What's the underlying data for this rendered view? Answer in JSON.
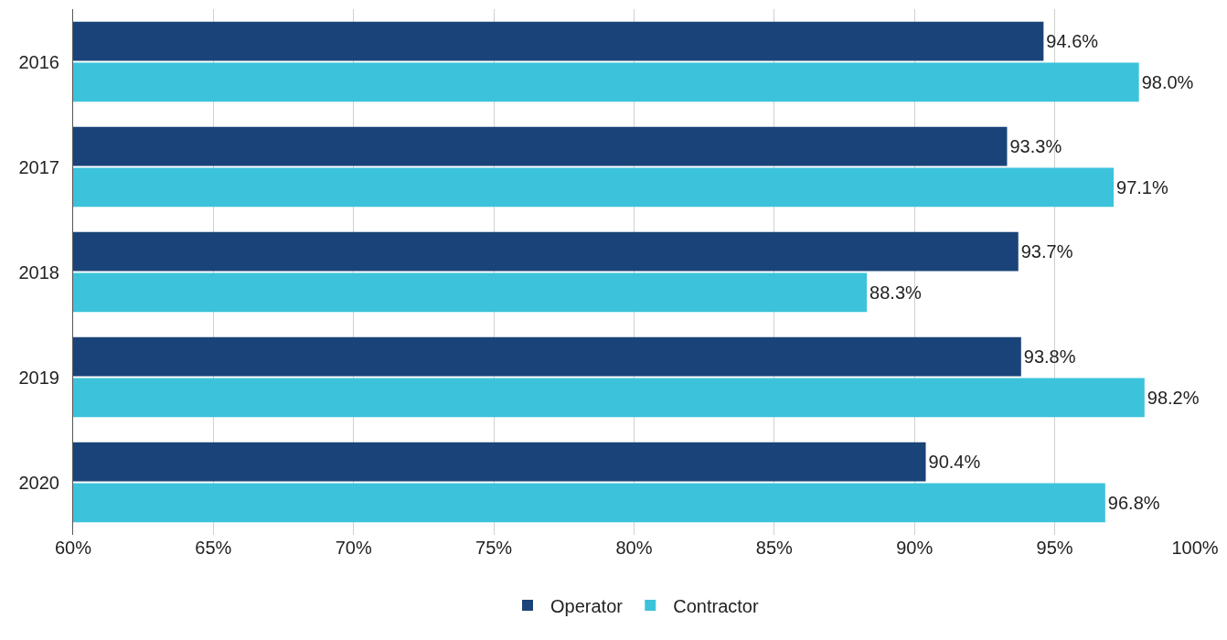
{
  "chart_data": {
    "type": "bar",
    "orientation": "horizontal",
    "categories": [
      "2016",
      "2017",
      "2018",
      "2019",
      "2020"
    ],
    "series": [
      {
        "name": "Operator",
        "color": "#1a4479",
        "values": [
          94.6,
          93.3,
          93.7,
          93.8,
          90.4
        ],
        "value_labels": [
          "94.6%",
          "93.3%",
          "93.7%",
          "93.8%",
          "90.4%"
        ]
      },
      {
        "name": "Contractor",
        "color": "#3cc3db",
        "values": [
          98.0,
          97.1,
          88.3,
          98.2,
          96.8
        ],
        "value_labels": [
          "98.0%",
          "97.1%",
          "88.3%",
          "98.2%",
          "96.8%"
        ]
      }
    ],
    "xlim": [
      60,
      100
    ],
    "xticks": [
      {
        "value": 60,
        "label": "60%"
      },
      {
        "value": 65,
        "label": "65%"
      },
      {
        "value": 70,
        "label": "70%"
      },
      {
        "value": 75,
        "label": "75%"
      },
      {
        "value": 80,
        "label": "80%"
      },
      {
        "value": 85,
        "label": "85%"
      },
      {
        "value": 90,
        "label": "90%"
      },
      {
        "value": 95,
        "label": "95%"
      },
      {
        "value": 100,
        "label": "100%"
      }
    ],
    "grid": "x",
    "legend": "bottom"
  }
}
